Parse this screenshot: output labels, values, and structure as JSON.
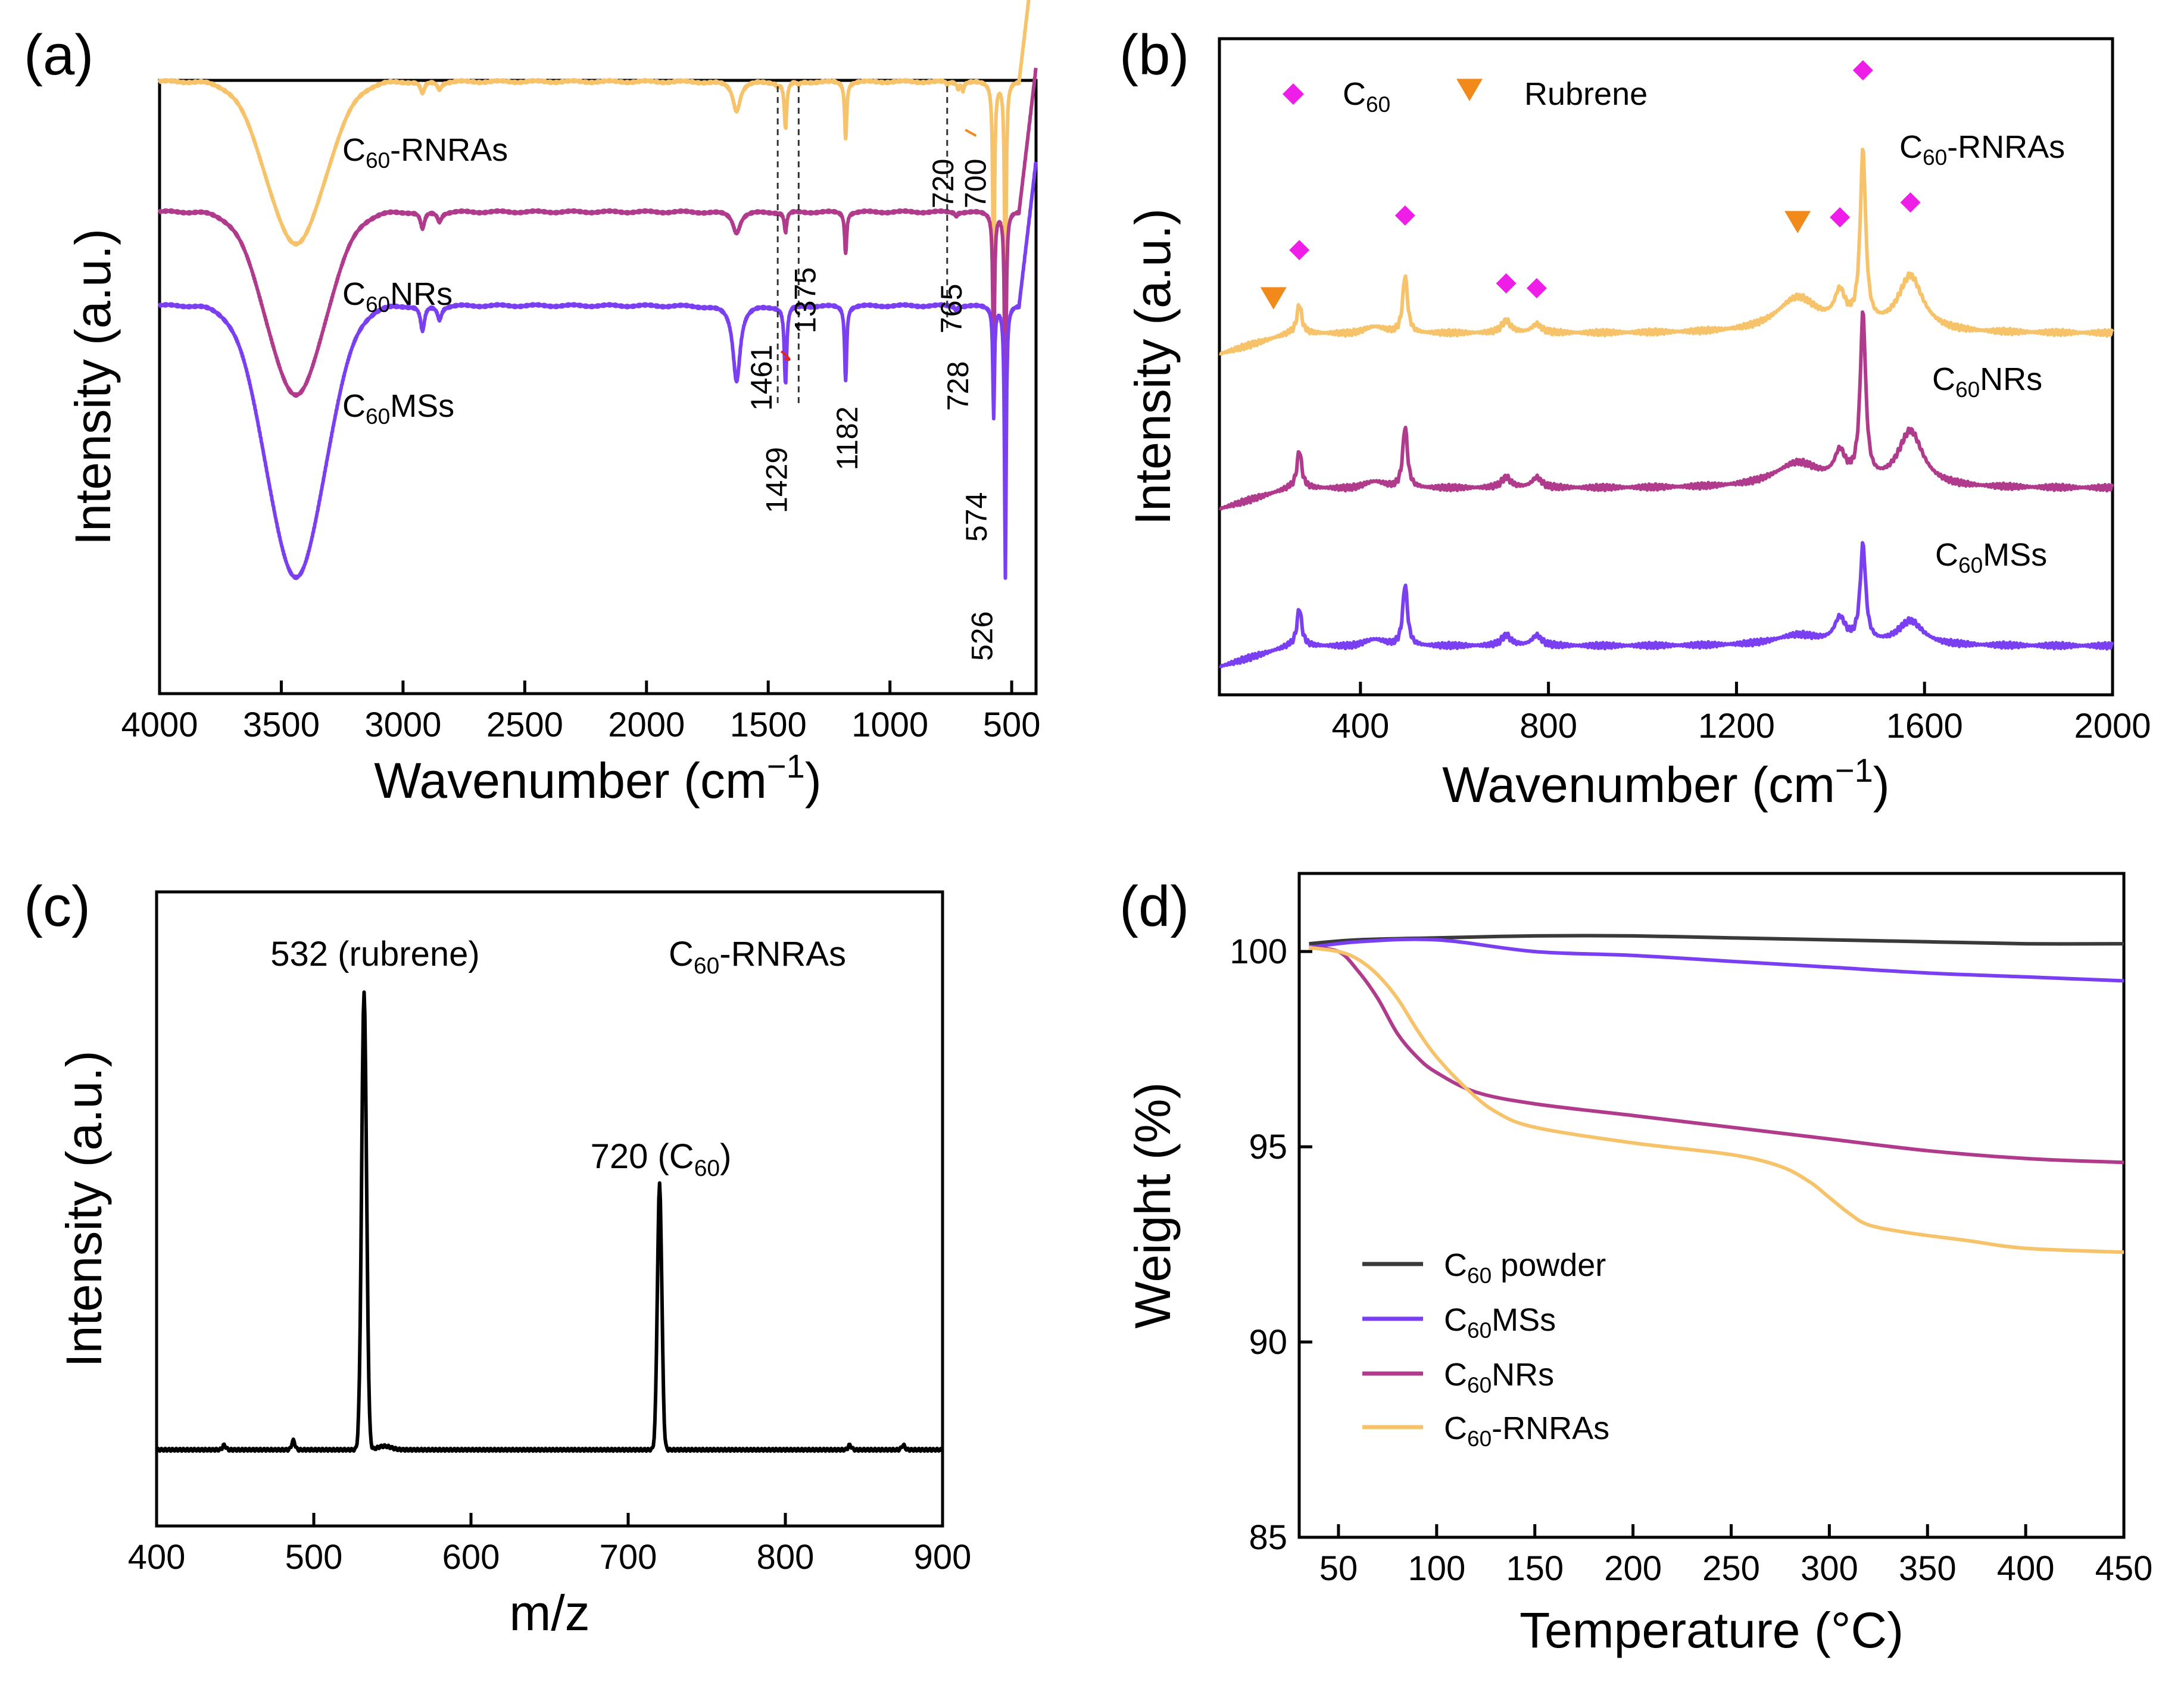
{
  "colors": {
    "rnras": "#f6c36a",
    "nrs": "#b03a8c",
    "mss": "#7b3ff2",
    "powder": "#3a3a3a",
    "ms": "#000000",
    "red": "#e8221b",
    "green": "#1e8c1e",
    "orange": "#f28a1b",
    "magenta": "#ee1ee8",
    "ink": "#000000"
  },
  "chart_data": [
    {
      "panel": "(a)",
      "type": "line",
      "title": "",
      "xlabel": "Wavenumber (cm−1)",
      "ylabel": "Intensity (a.u.)",
      "xlim": [
        4000,
        400
      ],
      "xticks": [
        4000,
        3500,
        3000,
        2500,
        2000,
        1500,
        1000,
        500
      ],
      "yticks_shown": false,
      "series": [
        {
          "name": "C60-RNRAs",
          "label_main": "C",
          "label_sub": "60",
          "label_rest": "-RNRAs",
          "color_key": "rnras",
          "baseline": 0.0,
          "broad_depth": 1.55,
          "peaks": [
            [
              2920,
              0.12,
              10
            ],
            [
              2850,
              0.07,
              10
            ],
            [
              1630,
              0.28,
              18
            ],
            [
              1461,
              0.03,
              6
            ],
            [
              1429,
              0.45,
              6
            ],
            [
              1375,
              0.03,
              6
            ],
            [
              1182,
              0.55,
              5
            ],
            [
              765,
              0.03,
              5
            ],
            [
              720,
              0.06,
              5
            ],
            [
              700,
              0.08,
              5
            ],
            [
              574,
              2.1,
              4
            ],
            [
              526,
              2.2,
              4
            ]
          ]
        },
        {
          "name": "C60NRs",
          "label_main": "C",
          "label_sub": "60",
          "label_rest": "NRs",
          "color_key": "nrs",
          "baseline": 1.25,
          "broad_depth": 1.75,
          "peaks": [
            [
              2920,
              0.17,
              10
            ],
            [
              2850,
              0.09,
              10
            ],
            [
              1630,
              0.2,
              18
            ],
            [
              1429,
              0.2,
              6
            ],
            [
              1182,
              0.4,
              5
            ],
            [
              728,
              0.04,
              5
            ],
            [
              574,
              1.55,
              4
            ],
            [
              526,
              2.05,
              4
            ]
          ]
        },
        {
          "name": "C60MSs",
          "label_main": "C",
          "label_sub": "60",
          "label_rest": "MSs",
          "color_key": "mss",
          "baseline": 2.15,
          "broad_depth": 2.6,
          "peaks": [
            [
              2920,
              0.25,
              10
            ],
            [
              2850,
              0.13,
              10
            ],
            [
              1630,
              0.72,
              18
            ],
            [
              1429,
              0.75,
              6
            ],
            [
              1182,
              0.72,
              5
            ],
            [
              728,
              0.05,
              5
            ],
            [
              574,
              1.05,
              4
            ],
            [
              526,
              2.6,
              4
            ]
          ]
        }
      ],
      "annotations": [
        {
          "text": "1461",
          "x": 1461,
          "color_key": "red"
        },
        {
          "text": "1429",
          "x": 1429,
          "color_key": "ink"
        },
        {
          "text": "1375",
          "x": 1375,
          "color_key": "green"
        },
        {
          "text": "1182",
          "x": 1182,
          "color_key": "ink"
        },
        {
          "text": "765",
          "x": 765,
          "color_key": "green"
        },
        {
          "text": "728",
          "x": 728,
          "color_key": "red"
        },
        {
          "text": "720",
          "x": 720,
          "color_key": "orange"
        },
        {
          "text": "700",
          "x": 700,
          "color_key": "orange"
        },
        {
          "text": "574",
          "x": 574,
          "color_key": "ink"
        },
        {
          "text": "526",
          "x": 526,
          "color_key": "ink"
        }
      ],
      "dashed_lines": [
        1461,
        1375,
        765
      ]
    },
    {
      "panel": "(b)",
      "type": "line",
      "title": "",
      "xlabel": "Wavenumber (cm−1)",
      "ylabel": "Intensity (a.u.)",
      "xlim": [
        100,
        2000
      ],
      "xticks": [
        400,
        800,
        1200,
        1600,
        2000
      ],
      "yticks_shown": false,
      "series": [
        {
          "name": "C60-RNRAs",
          "label_main": "C",
          "label_sub": "60",
          "label_rest": "-RNRAs",
          "color_key": "rnras",
          "offset": 2,
          "peaks": [
            [
              270,
              0.85,
              6
            ],
            [
              495,
              1.7,
              6
            ],
            [
              710,
              0.35,
              12
            ],
            [
              775,
              0.25,
              12
            ],
            [
              1330,
              1.0,
              55
            ],
            [
              1420,
              0.9,
              14
            ],
            [
              1469,
              5.0,
              7
            ],
            [
              1570,
              1.6,
              32
            ]
          ]
        },
        {
          "name": "C60NRs",
          "label_main": "C",
          "label_sub": "60",
          "label_rest": "NRs",
          "color_key": "nrs",
          "offset": 1,
          "peaks": [
            [
              270,
              1.1,
              6
            ],
            [
              495,
              1.8,
              6
            ],
            [
              710,
              0.3,
              12
            ],
            [
              775,
              0.3,
              12
            ],
            [
              1330,
              0.7,
              60
            ],
            [
              1420,
              0.8,
              14
            ],
            [
              1469,
              4.8,
              7
            ],
            [
              1570,
              1.6,
              32
            ]
          ]
        },
        {
          "name": "C60MSs",
          "label_main": "C",
          "label_sub": "60",
          "label_rest": "MSs",
          "color_key": "mss",
          "offset": 0,
          "peaks": [
            [
              270,
              1.1,
              6
            ],
            [
              495,
              1.8,
              6
            ],
            [
              710,
              0.3,
              12
            ],
            [
              775,
              0.3,
              12
            ],
            [
              1330,
              0.3,
              60
            ],
            [
              1420,
              0.7,
              14
            ],
            [
              1469,
              2.8,
              7
            ],
            [
              1570,
              0.7,
              32
            ]
          ]
        }
      ],
      "legend": {
        "c60_main": "C",
        "c60_sub": "60",
        "rubrene": "Rubrene",
        "position": "top-left"
      },
      "markers_c60": [
        270,
        495,
        710,
        775,
        1420,
        1469,
        1570
      ],
      "markers_rubrene": [
        215,
        1330
      ]
    },
    {
      "panel": "(c)",
      "type": "line",
      "title": "",
      "xlabel": "m/z",
      "ylabel": "Intensity (a.u.)",
      "xlim": [
        400,
        900
      ],
      "xticks": [
        400,
        500,
        600,
        700,
        800,
        900
      ],
      "yticks_shown": false,
      "series": [
        {
          "name": "C60-RNRAs",
          "color_key": "ms",
          "peaks": [
            [
              532,
              1.0,
              2.2
            ],
            [
              720,
              0.58,
              2.0
            ],
            [
              487,
              0.02,
              1.5
            ],
            [
              443,
              0.01,
              1.5
            ],
            [
              841,
              0.01,
              1.5
            ],
            [
              875,
              0.01,
              1.5
            ]
          ]
        }
      ],
      "sample_label": {
        "main": "C",
        "sub": "60",
        "rest": "-RNRAs"
      },
      "annotations": [
        {
          "text": "532 (rubrene)",
          "x": 532,
          "color_key": "orange"
        },
        {
          "text_main": "720 (C",
          "text_sub": "60",
          "text_rest": ")",
          "x": 720,
          "color_key": "ink"
        }
      ]
    },
    {
      "panel": "(d)",
      "type": "line",
      "title": "",
      "xlabel": "Temperature (°C)",
      "ylabel": "Weight (%)",
      "xlim": [
        30,
        450
      ],
      "ylim": [
        85,
        102
      ],
      "xticks": [
        50,
        100,
        150,
        200,
        250,
        300,
        350,
        400,
        450
      ],
      "yticks": [
        85,
        90,
        95,
        100
      ],
      "series": [
        {
          "name": "C60 powder",
          "label_main": "C",
          "label_sub": "60",
          "label_rest": " powder",
          "color_key": "powder",
          "x": [
            35,
            60,
            100,
            150,
            200,
            250,
            300,
            350,
            400,
            450
          ],
          "y": [
            100.2,
            100.3,
            100.35,
            100.4,
            100.4,
            100.35,
            100.3,
            100.25,
            100.2,
            100.2
          ]
        },
        {
          "name": "C60MSs",
          "label_main": "C",
          "label_sub": "60",
          "label_rest": "MSs",
          "color_key": "mss",
          "x": [
            35,
            60,
            100,
            150,
            200,
            250,
            300,
            350,
            400,
            450
          ],
          "y": [
            100.1,
            100.25,
            100.3,
            100.0,
            99.9,
            99.75,
            99.6,
            99.45,
            99.35,
            99.25
          ]
        },
        {
          "name": "C60NRs",
          "label_main": "C",
          "label_sub": "60",
          "label_rest": "NRs",
          "color_key": "nrs",
          "x": [
            35,
            50,
            60,
            70,
            80,
            90,
            100,
            120,
            150,
            200,
            250,
            300,
            350,
            400,
            450
          ],
          "y": [
            100.1,
            100.0,
            99.5,
            98.8,
            97.9,
            97.3,
            96.9,
            96.4,
            96.1,
            95.8,
            95.5,
            95.2,
            94.9,
            94.7,
            94.6
          ]
        },
        {
          "name": "C60-RNRAs",
          "label_main": "C",
          "label_sub": "60",
          "label_rest": "-RNRAs",
          "color_key": "rnras",
          "x": [
            35,
            50,
            60,
            70,
            80,
            90,
            100,
            115,
            130,
            150,
            200,
            250,
            275,
            290,
            300,
            310,
            320,
            340,
            370,
            400,
            450
          ],
          "y": [
            100.1,
            100.0,
            99.8,
            99.4,
            98.8,
            98.0,
            97.3,
            96.5,
            95.9,
            95.5,
            95.1,
            94.8,
            94.5,
            94.1,
            93.7,
            93.3,
            93.0,
            92.8,
            92.6,
            92.4,
            92.3
          ]
        }
      ],
      "legend_position": "bottom-left"
    }
  ]
}
